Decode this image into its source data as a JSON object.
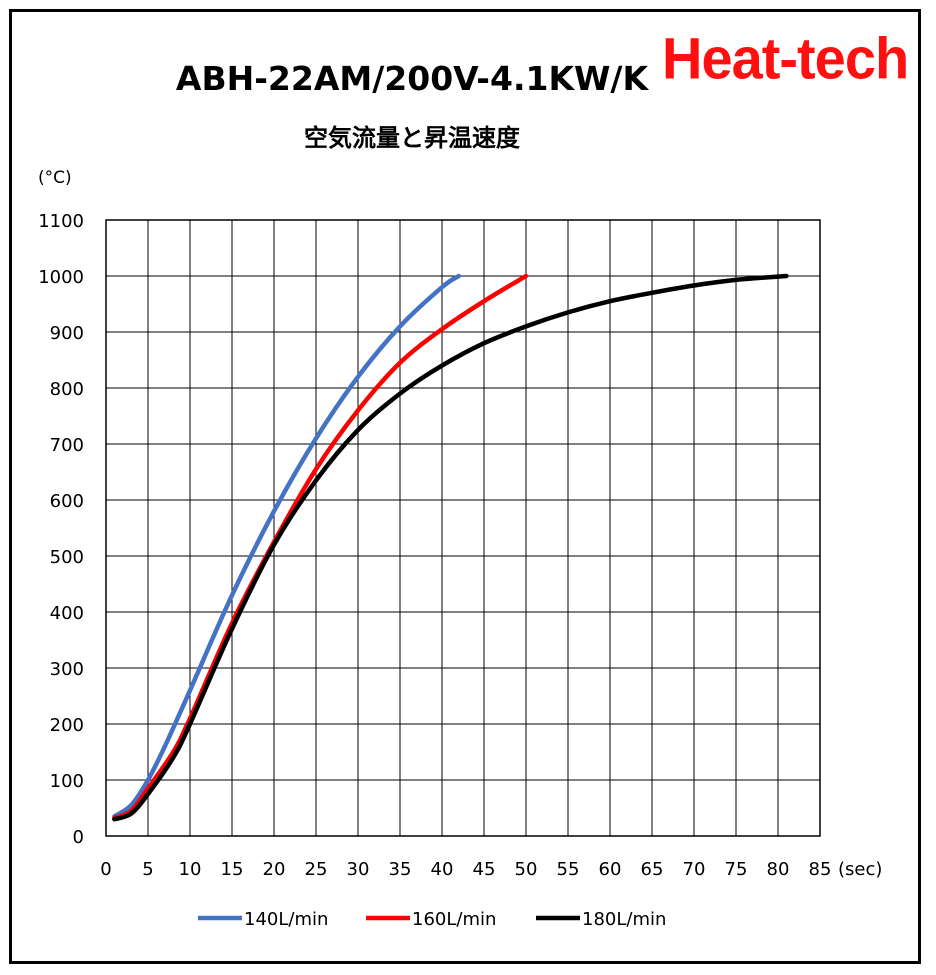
{
  "brand": {
    "logo_text": "Heat-tech",
    "color": "#ff1010"
  },
  "chart_data": {
    "type": "line",
    "title": "ABH-22AM/200V-4.1KW/K",
    "subtitle": "空気流量と昇温速度",
    "ylabel": "(°C)",
    "xlabel": "(sec)",
    "xlim": [
      0,
      85
    ],
    "ylim": [
      0,
      1100
    ],
    "xticks": [
      0,
      5,
      10,
      15,
      20,
      25,
      30,
      35,
      40,
      45,
      50,
      55,
      60,
      65,
      70,
      75,
      80,
      85
    ],
    "yticks": [
      0,
      100,
      200,
      300,
      400,
      500,
      600,
      700,
      800,
      900,
      1000,
      1100
    ],
    "grid": true,
    "legend": "bottom",
    "series": [
      {
        "name": "140L/min",
        "color": "#4472c4",
        "x": [
          1,
          3,
          5,
          7,
          10,
          15,
          20,
          25,
          30,
          35,
          40,
          42
        ],
        "y": [
          35,
          55,
          100,
          160,
          260,
          430,
          580,
          710,
          820,
          910,
          980,
          1000
        ]
      },
      {
        "name": "160L/min",
        "color": "#ff0000",
        "x": [
          1,
          3,
          5,
          8,
          10,
          15,
          20,
          25,
          30,
          35,
          40,
          45,
          50
        ],
        "y": [
          32,
          45,
          85,
          150,
          210,
          380,
          525,
          655,
          760,
          845,
          905,
          955,
          1000
        ]
      },
      {
        "name": "180L/min",
        "color": "#000000",
        "x": [
          1,
          3,
          5,
          8,
          10,
          15,
          20,
          25,
          30,
          35,
          40,
          45,
          50,
          55,
          60,
          65,
          70,
          75,
          81
        ],
        "y": [
          30,
          40,
          75,
          140,
          200,
          370,
          520,
          635,
          725,
          790,
          840,
          880,
          910,
          935,
          955,
          970,
          983,
          993,
          1000
        ]
      }
    ]
  }
}
